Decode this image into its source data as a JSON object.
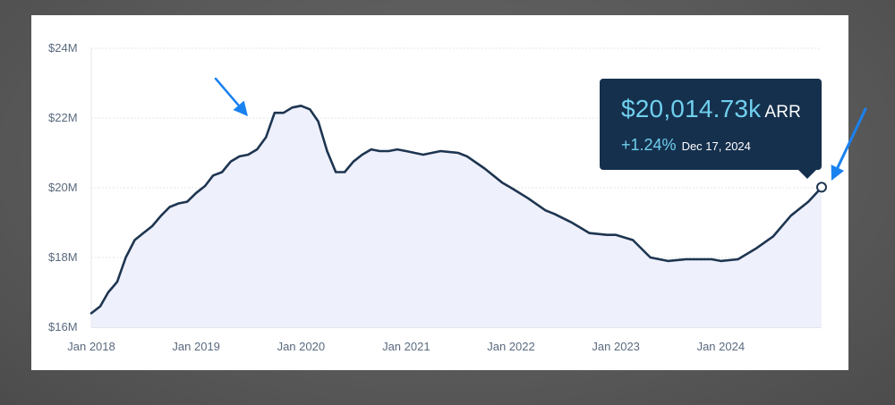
{
  "tooltip": {
    "value": "$20,014.73k",
    "unit": "ARR",
    "change": "+1.24%",
    "date": "Dec 17, 2024"
  },
  "colors": {
    "line": "#1e3550",
    "fill": "#eef0fb",
    "arrow": "#1a82f0",
    "grid": "#e3e6ea"
  },
  "chart_data": {
    "type": "area",
    "title": "",
    "xlabel": "",
    "ylabel": "",
    "x_ticks": [
      "Jan 2018",
      "Jan 2019",
      "Jan 2020",
      "Jan 2021",
      "Jan 2022",
      "Jan 2023",
      "Jan 2024"
    ],
    "y_ticks": [
      "$16M",
      "$18M",
      "$20M",
      "$22M",
      "$24M"
    ],
    "ylim": [
      16,
      24
    ],
    "xlim": [
      "2018-01-01",
      "2024-12-17"
    ],
    "grid": true,
    "series": [
      {
        "x": [
          "2018-01-01",
          "2018-02-01",
          "2018-03-01",
          "2018-04-01",
          "2018-05-01",
          "2018-06-01",
          "2018-07-01",
          "2018-08-01",
          "2018-09-01",
          "2018-10-01",
          "2018-11-01",
          "2018-12-01",
          "2019-01-01",
          "2019-02-01",
          "2019-03-01",
          "2019-04-01",
          "2019-05-01",
          "2019-06-01",
          "2019-07-01",
          "2019-08-01",
          "2019-09-01",
          "2019-10-01",
          "2019-11-01",
          "2019-12-01",
          "2020-01-01",
          "2020-02-01",
          "2020-03-01",
          "2020-04-01",
          "2020-05-01",
          "2020-06-01",
          "2020-07-01",
          "2020-08-01",
          "2020-09-01",
          "2020-10-01",
          "2020-11-01",
          "2020-12-01",
          "2021-01-01",
          "2021-03-01",
          "2021-05-01",
          "2021-07-01",
          "2021-08-01",
          "2021-10-01",
          "2021-12-01",
          "2022-01-01",
          "2022-03-01",
          "2022-05-01",
          "2022-06-01",
          "2022-08-01",
          "2022-10-01",
          "2022-12-01",
          "2023-01-01",
          "2023-03-01",
          "2023-05-01",
          "2023-07-01",
          "2023-09-01",
          "2023-10-01",
          "2023-12-01",
          "2024-01-01",
          "2024-03-01",
          "2024-05-01",
          "2024-07-01",
          "2024-09-01",
          "2024-11-01",
          "2024-12-17"
        ],
        "values": [
          16.4,
          16.6,
          17.0,
          17.3,
          18.0,
          18.5,
          18.7,
          18.9,
          19.2,
          19.45,
          19.55,
          19.6,
          19.85,
          20.05,
          20.35,
          20.45,
          20.75,
          20.9,
          20.95,
          21.1,
          21.45,
          22.15,
          22.15,
          22.3,
          22.35,
          22.25,
          21.9,
          21.05,
          20.45,
          20.45,
          20.75,
          20.95,
          21.1,
          21.05,
          21.05,
          21.1,
          21.05,
          20.95,
          21.05,
          21.0,
          20.9,
          20.55,
          20.15,
          20.0,
          19.7,
          19.35,
          19.25,
          19.0,
          18.7,
          18.65,
          18.65,
          18.5,
          18.0,
          17.9,
          17.95,
          17.95,
          17.95,
          17.9,
          17.95,
          18.25,
          18.6,
          19.2,
          19.6,
          20.01
        ]
      }
    ],
    "highlight_point": {
      "x": "2024-12-17",
      "y": 20.01473
    },
    "annotations": [
      "arrow pointing to peak near Jan 2020",
      "arrow pointing to latest point Dec 17, 2024"
    ]
  }
}
